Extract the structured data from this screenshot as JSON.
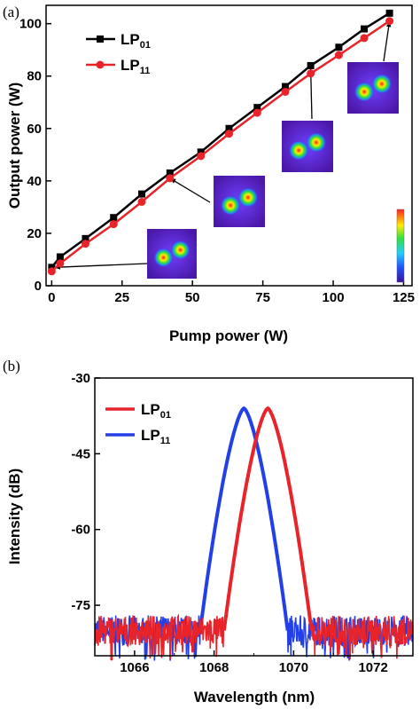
{
  "chart_data": [
    {
      "panel_label": "(a)",
      "type": "line",
      "xlabel": "Pump power (W)",
      "ylabel": "Output power (W)",
      "xlim": [
        -2,
        128
      ],
      "ylim": [
        0,
        107
      ],
      "xticks": [
        "0",
        "25",
        "50",
        "75",
        "100",
        "125"
      ],
      "yticks": [
        "0",
        "20",
        "40",
        "60",
        "80",
        "100"
      ],
      "legend_position": "top-left",
      "series": [
        {
          "name": "LP",
          "sub": "01",
          "color": "#000000",
          "marker": "square",
          "x": [
            0,
            3,
            12,
            22,
            32,
            42,
            53,
            63,
            73,
            83,
            92,
            102,
            111,
            120
          ],
          "y": [
            7,
            11,
            18,
            26,
            35,
            43,
            51,
            60,
            68,
            76,
            84,
            91,
            98,
            104
          ]
        },
        {
          "name": "LP",
          "sub": "11",
          "color": "#e8242a",
          "marker": "circle",
          "x": [
            0,
            3,
            12,
            22,
            32,
            42,
            53,
            63,
            73,
            83,
            92,
            102,
            111,
            120
          ],
          "y": [
            5.5,
            8.5,
            16,
            23.5,
            32,
            41,
            49.5,
            58,
            66,
            74,
            81,
            88,
            94.5,
            101
          ]
        }
      ],
      "insets": [
        {
          "name": "mode-image-1",
          "arrow_to": [
            1,
            7
          ]
        },
        {
          "name": "mode-image-2",
          "arrow_to": [
            42,
            41
          ]
        },
        {
          "name": "mode-image-3",
          "arrow_to": [
            92,
            83
          ]
        },
        {
          "name": "mode-image-4",
          "arrow_to": [
            120,
            101
          ]
        }
      ]
    },
    {
      "panel_label": "(b)",
      "type": "line",
      "xlabel": "Wavelength (nm)",
      "ylabel": "Intensity (dB)",
      "xlim": [
        1065,
        1073
      ],
      "ylim": [
        -85,
        -30
      ],
      "xticks": [
        "1066",
        "1068",
        "1070",
        "1072"
      ],
      "yticks": [
        "-30",
        "-45",
        "-60",
        "-75"
      ],
      "legend_position": "top-left",
      "noise_floor": -80,
      "series": [
        {
          "name": "LP",
          "sub": "01",
          "color": "#e8242a",
          "peak_x": 1069.35,
          "peak_y": -36,
          "base_halfwidth": 1.1
        },
        {
          "name": "LP",
          "sub": "11",
          "color": "#2340e8",
          "peak_x": 1068.75,
          "peak_y": -36,
          "base_halfwidth": 1.1
        }
      ]
    }
  ]
}
